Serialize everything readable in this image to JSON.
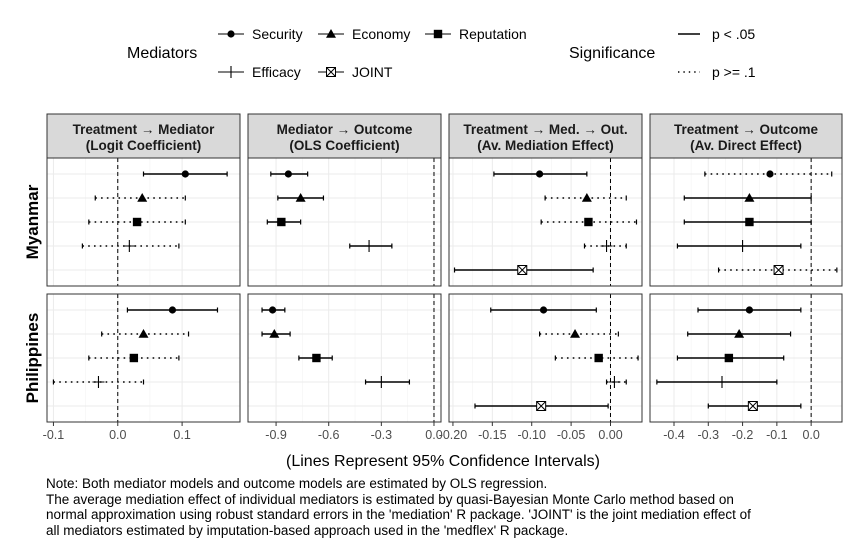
{
  "legend": {
    "mediators_title": "Mediators",
    "mediators": [
      {
        "name": "Security",
        "shape": "circle"
      },
      {
        "name": "Economy",
        "shape": "triangle"
      },
      {
        "name": "Reputation",
        "shape": "square"
      },
      {
        "name": "Efficacy",
        "shape": "plus"
      },
      {
        "name": "JOINT",
        "shape": "boxx"
      }
    ],
    "significance_title": "Significance",
    "significance": [
      {
        "name": "p < .05",
        "line": "solid"
      },
      {
        "name": "p >= .1",
        "line": "dotted"
      }
    ]
  },
  "x_axis_title": "(Lines Represent 95% Confidence Intervals)",
  "note": [
    "Note: Both mediator models and outcome models are estimated by OLS regression.",
    "The average mediation effect of individual mediators is estimated by quasi-Bayesian Monte Carlo method based on",
    "normal approximation using robust standard errors in the 'mediation' R package. 'JOINT' is the joint mediation effect of",
    "all mediators estimated by imputation-based approach used in the 'medflex' R package."
  ],
  "colors": {
    "strip_fill": "#d9d9d9",
    "grid": "#ebebeb",
    "frame": "#333333",
    "tick_label": "#4d4d4d",
    "ink": "#000000"
  },
  "chart_data": {
    "type": "forest",
    "rows": [
      "Myanmar",
      "Philippines"
    ],
    "panels": [
      {
        "title": [
          "Treatment → Mediator",
          "(Logit Coefficient)"
        ],
        "xlim": [
          -0.11,
          0.19
        ],
        "ticks": [
          -0.1,
          0.0,
          0.1
        ],
        "tick_labels": [
          "-0.1",
          "0.0",
          "0.1"
        ],
        "zero": 0.0
      },
      {
        "title": [
          "Mediator → Outcome",
          "(OLS Coefficient)"
        ],
        "xlim": [
          -1.06,
          0.04
        ],
        "ticks": [
          -0.9,
          -0.6,
          -0.3,
          0.0
        ],
        "tick_labels": [
          "-0.9",
          "-0.6",
          "-0.3",
          "0.0"
        ],
        "zero": 0.0
      },
      {
        "title": [
          "Treatment → Med. → Out.",
          "(Av. Mediation Effect)"
        ],
        "xlim": [
          -0.205,
          0.04
        ],
        "ticks": [
          -0.2,
          -0.15,
          -0.1,
          -0.05,
          0.0
        ],
        "tick_labels": [
          "-0.20",
          "-0.15",
          "-0.10",
          "-0.05",
          "0.00"
        ],
        "zero": 0.0
      },
      {
        "title": [
          "Treatment → Outcome",
          "(Av. Direct Effect)"
        ],
        "xlim": [
          -0.47,
          0.09
        ],
        "ticks": [
          -0.4,
          -0.3,
          -0.2,
          -0.1,
          0.0
        ],
        "tick_labels": [
          "-0.4",
          "-0.3",
          "-0.2",
          "-0.1",
          "0.0"
        ],
        "zero": 0.0
      }
    ],
    "estimates": [
      {
        "row": "Myanmar",
        "panel": 0,
        "items": [
          {
            "mediator": "Security",
            "est": 0.105,
            "lo": 0.04,
            "hi": 0.17,
            "sig": "p < .05"
          },
          {
            "mediator": "Economy",
            "est": 0.038,
            "lo": -0.035,
            "hi": 0.105,
            "sig": "p >= .1"
          },
          {
            "mediator": "Reputation",
            "est": 0.03,
            "lo": -0.045,
            "hi": 0.105,
            "sig": "p >= .1"
          },
          {
            "mediator": "Efficacy",
            "est": 0.018,
            "lo": -0.055,
            "hi": 0.095,
            "sig": "p >= .1"
          }
        ]
      },
      {
        "row": "Myanmar",
        "panel": 1,
        "items": [
          {
            "mediator": "Security",
            "est": -0.83,
            "lo": -0.93,
            "hi": -0.72,
            "sig": "p < .05"
          },
          {
            "mediator": "Economy",
            "est": -0.76,
            "lo": -0.89,
            "hi": -0.63,
            "sig": "p < .05"
          },
          {
            "mediator": "Reputation",
            "est": -0.87,
            "lo": -0.95,
            "hi": -0.76,
            "sig": "p < .05"
          },
          {
            "mediator": "Efficacy",
            "est": -0.37,
            "lo": -0.48,
            "hi": -0.24,
            "sig": "p < .05"
          }
        ]
      },
      {
        "row": "Myanmar",
        "panel": 2,
        "items": [
          {
            "mediator": "Security",
            "est": -0.09,
            "lo": -0.148,
            "hi": -0.03,
            "sig": "p < .05"
          },
          {
            "mediator": "Economy",
            "est": -0.03,
            "lo": -0.083,
            "hi": 0.02,
            "sig": "p >= .1"
          },
          {
            "mediator": "Reputation",
            "est": -0.028,
            "lo": -0.088,
            "hi": 0.033,
            "sig": "p >= .1"
          },
          {
            "mediator": "Efficacy",
            "est": -0.005,
            "lo": -0.033,
            "hi": 0.02,
            "sig": "p >= .1"
          },
          {
            "mediator": "JOINT",
            "est": -0.112,
            "lo": -0.198,
            "hi": -0.022,
            "sig": "p < .05"
          }
        ]
      },
      {
        "row": "Myanmar",
        "panel": 3,
        "items": [
          {
            "mediator": "Security",
            "est": -0.12,
            "lo": -0.31,
            "hi": 0.06,
            "sig": "p >= .1"
          },
          {
            "mediator": "Economy",
            "est": -0.18,
            "lo": -0.37,
            "hi": 0.0,
            "sig": "p < .05"
          },
          {
            "mediator": "Reputation",
            "est": -0.18,
            "lo": -0.37,
            "hi": 0.0,
            "sig": "p < .05"
          },
          {
            "mediator": "Efficacy",
            "est": -0.2,
            "lo": -0.39,
            "hi": -0.03,
            "sig": "p < .05"
          },
          {
            "mediator": "JOINT",
            "est": -0.095,
            "lo": -0.27,
            "hi": 0.075,
            "sig": "p >= .1"
          }
        ]
      },
      {
        "row": "Philippines",
        "panel": 0,
        "items": [
          {
            "mediator": "Security",
            "est": 0.085,
            "lo": 0.015,
            "hi": 0.155,
            "sig": "p < .05"
          },
          {
            "mediator": "Economy",
            "est": 0.04,
            "lo": -0.025,
            "hi": 0.11,
            "sig": "p >= .1"
          },
          {
            "mediator": "Reputation",
            "est": 0.025,
            "lo": -0.045,
            "hi": 0.095,
            "sig": "p >= .1"
          },
          {
            "mediator": "Efficacy",
            "est": -0.03,
            "lo": -0.1,
            "hi": 0.04,
            "sig": "p >= .1"
          }
        ]
      },
      {
        "row": "Philippines",
        "panel": 1,
        "items": [
          {
            "mediator": "Security",
            "est": -0.92,
            "lo": -0.98,
            "hi": -0.85,
            "sig": "p < .05"
          },
          {
            "mediator": "Economy",
            "est": -0.91,
            "lo": -0.98,
            "hi": -0.82,
            "sig": "p < .05"
          },
          {
            "mediator": "Reputation",
            "est": -0.67,
            "lo": -0.77,
            "hi": -0.58,
            "sig": "p < .05"
          },
          {
            "mediator": "Efficacy",
            "est": -0.3,
            "lo": -0.39,
            "hi": -0.14,
            "sig": "p < .05"
          }
        ]
      },
      {
        "row": "Philippines",
        "panel": 2,
        "items": [
          {
            "mediator": "Security",
            "est": -0.085,
            "lo": -0.152,
            "hi": -0.018,
            "sig": "p < .05"
          },
          {
            "mediator": "Economy",
            "est": -0.045,
            "lo": -0.09,
            "hi": 0.01,
            "sig": "p >= .1"
          },
          {
            "mediator": "Reputation",
            "est": -0.015,
            "lo": -0.07,
            "hi": 0.035,
            "sig": "p >= .1"
          },
          {
            "mediator": "Efficacy",
            "est": 0.005,
            "lo": -0.005,
            "hi": 0.02,
            "sig": "p >= .1"
          },
          {
            "mediator": "JOINT",
            "est": -0.088,
            "lo": -0.172,
            "hi": -0.003,
            "sig": "p < .05"
          }
        ]
      },
      {
        "row": "Philippines",
        "panel": 3,
        "items": [
          {
            "mediator": "Security",
            "est": -0.18,
            "lo": -0.33,
            "hi": -0.03,
            "sig": "p < .05"
          },
          {
            "mediator": "Economy",
            "est": -0.21,
            "lo": -0.36,
            "hi": -0.06,
            "sig": "p < .05"
          },
          {
            "mediator": "Reputation",
            "est": -0.24,
            "lo": -0.39,
            "hi": -0.08,
            "sig": "p < .05"
          },
          {
            "mediator": "Efficacy",
            "est": -0.26,
            "lo": -0.45,
            "hi": -0.1,
            "sig": "p < .05"
          },
          {
            "mediator": "JOINT",
            "est": -0.17,
            "lo": -0.3,
            "hi": -0.03,
            "sig": "p < .05"
          }
        ]
      }
    ]
  }
}
